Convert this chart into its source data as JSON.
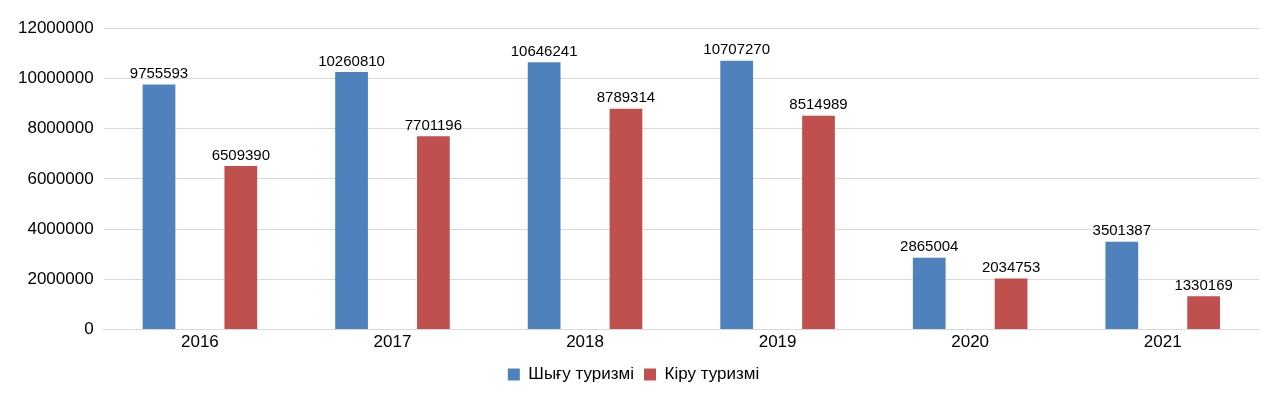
{
  "chart_data": {
    "type": "bar",
    "categories": [
      "2016",
      "2017",
      "2018",
      "2019",
      "2020",
      "2021"
    ],
    "series": [
      {
        "name": "Шығу туризмі",
        "color": "#4f81bd",
        "values": [
          9755593,
          10260810,
          10646241,
          10707270,
          2865004,
          3501387
        ]
      },
      {
        "name": "Кіру туризмі",
        "color": "#c0504d",
        "values": [
          6509390,
          7701196,
          8789314,
          8514989,
          2034753,
          1330169
        ]
      }
    ],
    "ylim": [
      0,
      12000000
    ],
    "yticks": [
      0,
      2000000,
      4000000,
      6000000,
      8000000,
      10000000,
      12000000
    ],
    "grid": "y",
    "legend": "bottom",
    "data_labels": true
  }
}
